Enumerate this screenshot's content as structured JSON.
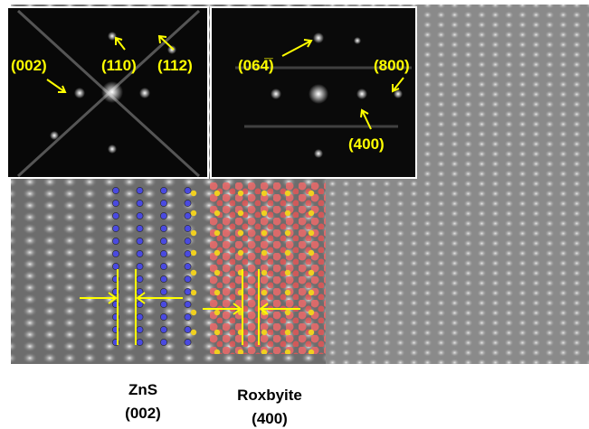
{
  "insets": [
    {
      "labels": [
        "(002)",
        "(110)",
        "(112)"
      ]
    },
    {
      "labels": [
        "(064̅)",
        "(800)",
        "(400)"
      ]
    }
  ],
  "captions": [
    {
      "name": "ZnS",
      "plane": "(002)"
    },
    {
      "name": "Roxbyite",
      "plane": "(400)"
    }
  ]
}
